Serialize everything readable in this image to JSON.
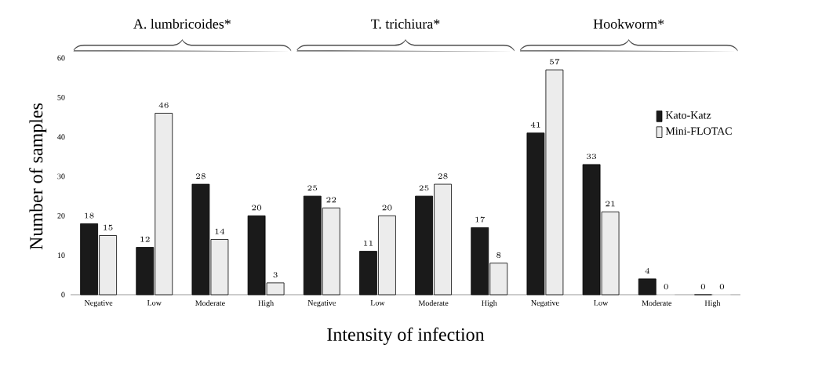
{
  "chart_data": {
    "type": "bar",
    "xlabel": "Intensity of infection",
    "ylabel": "Number of samples",
    "categories": [
      "Negative",
      "Low",
      "Moderate",
      "High",
      "Negative",
      "Low",
      "Moderate",
      "High",
      "Negative",
      "Low",
      "Moderate",
      "High"
    ],
    "series": [
      {
        "name": "Kato-Katz",
        "color": "#1a1a1a",
        "values": [
          18,
          12,
          28,
          20,
          25,
          11,
          25,
          17,
          41,
          33,
          4,
          0
        ]
      },
      {
        "name": "Mini-FLOTAC",
        "color": "#ececec",
        "values": [
          15,
          46,
          14,
          3,
          22,
          20,
          28,
          8,
          57,
          21,
          0,
          0
        ]
      }
    ],
    "annotations": [
      "A. lumbricoides*",
      "T. trichiura*",
      "Hookworm*"
    ],
    "ylim": [
      0,
      60
    ],
    "yticks": [
      0,
      10,
      20,
      30,
      40,
      50,
      60
    ],
    "data_labels": true,
    "legend": "right",
    "grid": false
  }
}
